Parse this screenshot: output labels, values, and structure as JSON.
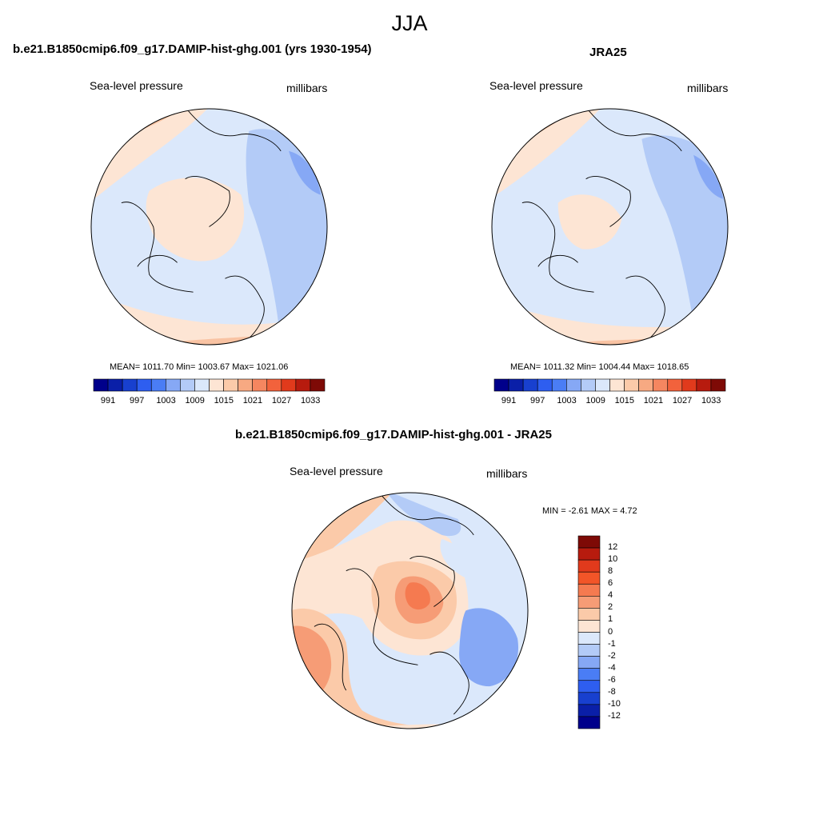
{
  "figure": {
    "season": "JJA"
  },
  "panels": [
    {
      "title": "b.e21.B1850cmip6.f09_g17.DAMIP-hist-ghg.001 (yrs 1930-1954)",
      "left_label": "Sea-level pressure",
      "right_label": "millibars",
      "stats": "MEAN= 1011.70  Min= 1003.67  Max= 1021.06",
      "colorbar_labels": [
        "991",
        "997",
        "1003",
        "1009",
        "1015",
        "1021",
        "1027",
        "1033"
      ]
    },
    {
      "title": "JRA25",
      "left_label": "Sea-level pressure",
      "right_label": "millibars",
      "stats": "MEAN= 1011.32  Min= 1004.44  Max= 1018.65",
      "colorbar_labels": [
        "991",
        "997",
        "1003",
        "1009",
        "1015",
        "1021",
        "1027",
        "1033"
      ]
    },
    {
      "title": "b.e21.B1850cmip6.f09_g17.DAMIP-hist-ghg.001 - JRA25",
      "left_label": "Sea-level pressure",
      "right_label": "millibars",
      "stats": "MIN =  -2.61 MAX =   4.72",
      "colorbar_labels": [
        "12",
        "10",
        "8",
        "6",
        "4",
        "2",
        "1",
        "0",
        "-1",
        "-2",
        "-4",
        "-6",
        "-8",
        "-10",
        "-12"
      ]
    }
  ],
  "colors": {
    "abs_scale": [
      "#00008b",
      "#0a1fa8",
      "#1840cf",
      "#2e5ef0",
      "#4a7df5",
      "#86a8f5",
      "#b3cbf7",
      "#dbe8fb",
      "#fde5d4",
      "#fbcaa9",
      "#f7a982",
      "#f58660",
      "#f2623c",
      "#e13a1c",
      "#b71b0e",
      "#7e0a06"
    ],
    "diff_scale_top_to_bottom": [
      "#7e0a06",
      "#b71b0e",
      "#e13a1c",
      "#f25528",
      "#f57a50",
      "#f69c76",
      "#fbcaa9",
      "#fde5d4",
      "#dbe8fb",
      "#b3cbf7",
      "#86a8f5",
      "#4a7df5",
      "#2e5ef0",
      "#1840cf",
      "#0a1fa8",
      "#00008b"
    ],
    "abs_fields": {
      "light_red": "#fde5d4",
      "mid_red": "#f9c3a3",
      "light_blue": "#dbe8fb",
      "mid_blue": "#b3cbf7",
      "deep_blue": "#86a8f5"
    }
  }
}
